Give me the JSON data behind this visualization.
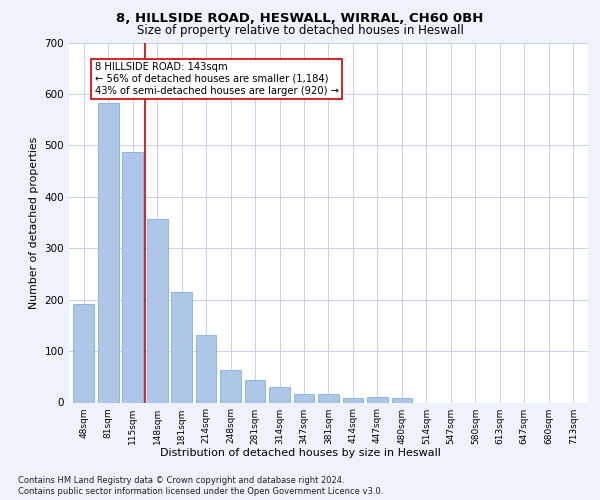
{
  "title_line1": "8, HILLSIDE ROAD, HESWALL, WIRRAL, CH60 0BH",
  "title_line2": "Size of property relative to detached houses in Heswall",
  "xlabel": "Distribution of detached houses by size in Heswall",
  "ylabel": "Number of detached properties",
  "categories": [
    "48sqm",
    "81sqm",
    "115sqm",
    "148sqm",
    "181sqm",
    "214sqm",
    "248sqm",
    "281sqm",
    "314sqm",
    "347sqm",
    "381sqm",
    "414sqm",
    "447sqm",
    "480sqm",
    "514sqm",
    "547sqm",
    "580sqm",
    "613sqm",
    "647sqm",
    "680sqm",
    "713sqm"
  ],
  "values": [
    192,
    583,
    487,
    356,
    215,
    132,
    63,
    44,
    31,
    16,
    16,
    9,
    10,
    9,
    0,
    0,
    0,
    0,
    0,
    0,
    0
  ],
  "bar_color": "#aec6e8",
  "bar_edge_color": "#6fa8d6",
  "vline_x": 2.5,
  "vline_color": "#cc0000",
  "annotation_text": "8 HILLSIDE ROAD: 143sqm\n← 56% of detached houses are smaller (1,184)\n43% of semi-detached houses are larger (920) →",
  "annotation_box_color": "#ffffff",
  "annotation_box_edge": "#cc0000",
  "ylim": [
    0,
    700
  ],
  "yticks": [
    0,
    100,
    200,
    300,
    400,
    500,
    600,
    700
  ],
  "footnote1": "Contains HM Land Registry data © Crown copyright and database right 2024.",
  "footnote2": "Contains public sector information licensed under the Open Government Licence v3.0.",
  "bg_color": "#eef2fb",
  "plot_bg_color": "#ffffff",
  "grid_color": "#c8d0e8"
}
